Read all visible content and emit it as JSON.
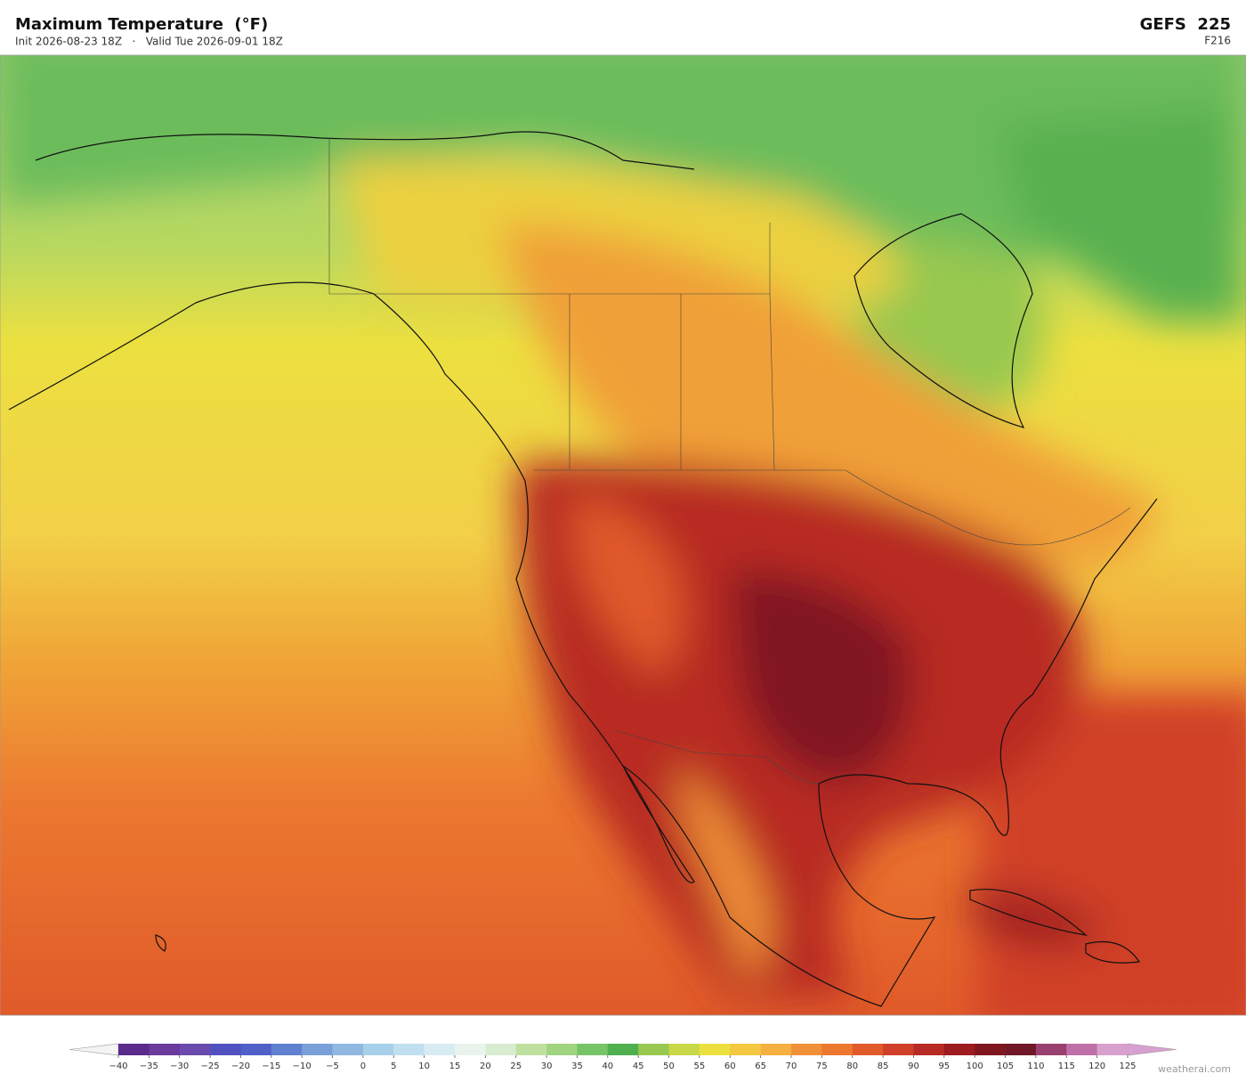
{
  "header": {
    "title": "Maximum Temperature  (°F)",
    "subtitle": "Init 2026-08-23 18Z   ·   Valid Tue 2026-09-01 18Z",
    "model": "GEFS  225",
    "forecast_hour": "F216"
  },
  "colorbar": {
    "ticks": [
      {
        "value": -40,
        "label": "−40"
      },
      {
        "value": -35,
        "label": "−35"
      },
      {
        "value": -30,
        "label": "−30"
      },
      {
        "value": -25,
        "label": "−25"
      },
      {
        "value": -20,
        "label": "−20"
      },
      {
        "value": -15,
        "label": "−15"
      },
      {
        "value": -10,
        "label": "−10"
      },
      {
        "value": -5,
        "label": "−5"
      },
      0,
      5,
      10,
      15,
      20,
      25,
      30,
      35,
      40,
      45,
      50,
      55,
      60,
      65,
      70,
      75,
      80,
      85,
      90,
      95,
      100,
      105,
      110,
      115,
      120,
      125
    ],
    "colors": [
      "#5a2a8c",
      "#6a3a9c",
      "#6a4aac",
      "#5050c0",
      "#5060c8",
      "#6080d0",
      "#7aa0d8",
      "#90b8e0",
      "#a8d0ea",
      "#c0e0f0",
      "#d8ecf4",
      "#e8f4ec",
      "#d8ecd0",
      "#c0e0a0",
      "#a0d480",
      "#78c468",
      "#50b050",
      "#98c850",
      "#c8d848",
      "#ece040",
      "#f4c840",
      "#f4b040",
      "#f09038",
      "#ec7830",
      "#e05a2a",
      "#d04028",
      "#b82a24",
      "#9c1c20",
      "#801620",
      "#701828",
      "#9a4070",
      "#c070a8",
      "#d8a0cc"
    ],
    "under_color": "#f4f4f4",
    "over_color": "#d8a0d0"
  },
  "watermark": "weatherai.com"
}
